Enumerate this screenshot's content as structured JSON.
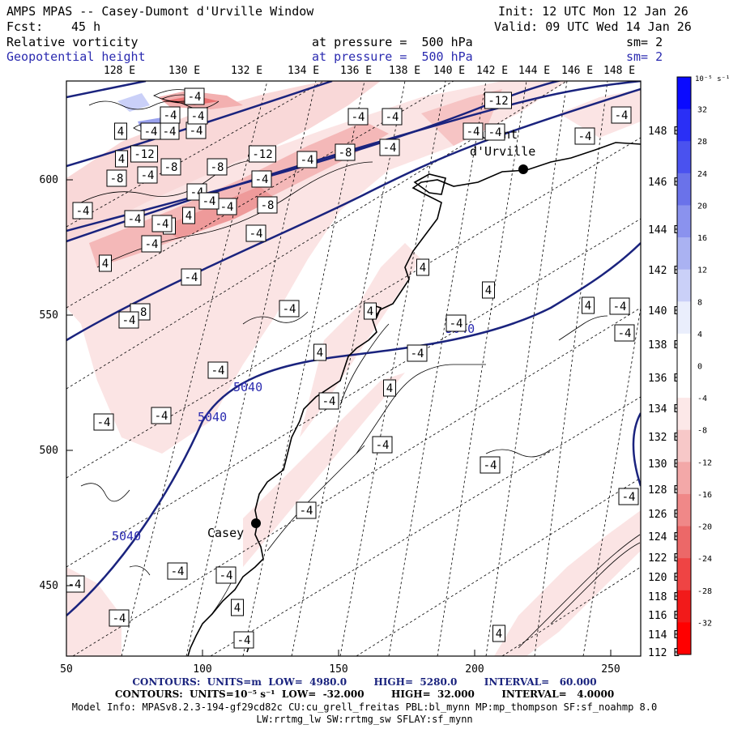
{
  "header": {
    "title": "AMPS MPAS -- Casey-Dumont d'Urville Window",
    "init": "Init: 12 UTC Mon 12 Jan 26",
    "fcst_label": "Fcst:",
    "fcst_value": "45 h",
    "valid": "Valid: 09 UTC Wed 14 Jan 26",
    "field1": {
      "name": "Relative vorticity",
      "pressure": "at pressure =  500 hPa",
      "sm": "sm= 2"
    },
    "field2": {
      "name": "Geopotential height",
      "pressure": "at pressure =  500 hPa",
      "sm": "sm= 2"
    }
  },
  "map": {
    "top_lon_labels": [
      "128 E",
      "130 E",
      "132 E",
      "134 E",
      "136 E",
      "138 E",
      "140 E",
      "142 E",
      "144 E",
      "146 E",
      "148 E"
    ],
    "right_lat_labels": [
      "148 E",
      "146 E",
      "144 E",
      "142 E",
      "140 E",
      "138 E",
      "136 E",
      "134 E",
      "132 E",
      "130 E",
      "128 E",
      "126 E",
      "124 E",
      "122 E",
      "120 E",
      "118 E",
      "116 E",
      "114 E",
      "112 E"
    ],
    "x_ticks": [
      "50",
      "100",
      "150",
      "200",
      "250"
    ],
    "y_ticks": [
      "600",
      "550",
      "500",
      "450"
    ],
    "stations": [
      {
        "name": "Dumont",
        "name2": "d'Urville"
      },
      {
        "name": "Casey"
      }
    ],
    "height_labels": [
      "5040",
      "5040",
      "5040",
      "5040"
    ],
    "vort_labels": [
      "-4",
      "-4",
      "-4",
      "-12",
      "-8",
      "-8",
      "-8",
      "-4",
      "-4",
      "-4",
      "4",
      "4",
      "-8",
      "-12",
      "-4",
      "-8",
      "-4",
      "-4",
      "-4",
      "-12",
      "-4",
      "-4",
      "-4",
      "-4",
      "-8",
      "-4",
      "-4",
      "-4",
      "4",
      "4",
      "4",
      "-4",
      "-4",
      "-4",
      "-4",
      "-4",
      "4",
      "4",
      "-4",
      "-4",
      "-4",
      "-4",
      "4",
      "-4",
      "-4",
      "-4",
      "-4",
      "-4",
      "-4",
      "4",
      "-4",
      "-4",
      "-4",
      "4",
      "-4",
      "-4",
      "-4",
      "4",
      "4",
      "-4",
      "-4",
      "4",
      "-4",
      "-4",
      "-4",
      "-4"
    ]
  },
  "colorbar": {
    "unit_label": "10⁻⁵ s⁻¹",
    "levels": [
      "32",
      "28",
      "24",
      "20",
      "16",
      "12",
      "8",
      "4",
      "0",
      "-4",
      "-8",
      "-12",
      "-16",
      "-20",
      "-24",
      "-28",
      "-32"
    ],
    "colors": [
      "#0a0aff",
      "#2a2ff6",
      "#4a52ef",
      "#6a72ea",
      "#8a92ee",
      "#aab2f2",
      "#cad0f8",
      "#eaeefc",
      "#ffffff",
      "#ffffff",
      "#fce8e8",
      "#f7c8c8",
      "#f3a8a8",
      "#f08888",
      "#ec6868",
      "#ef4444",
      "#f21a1a",
      "#ff0000"
    ]
  },
  "footer": {
    "line1": "CONTOURS:  UNITS=m  LOW=  4980.0        HIGH=  5280.0        INTERVAL=   60.000",
    "line2": "CONTOURS:  UNITS=10⁻⁵ s⁻¹  LOW=  -32.000        HIGH=  32.000        INTERVAL=   4.0000",
    "line3": "Model Info: MPASv8.2.3-194-gf29cd82c CU:cu_grell_freitas PBL:bl_mynn MP:mp_thompson SF:sf_noahmp 8.0",
    "line4": "LW:rrtmg_lw SW:rrtmg_sw SFLAY:sf_mynn"
  }
}
